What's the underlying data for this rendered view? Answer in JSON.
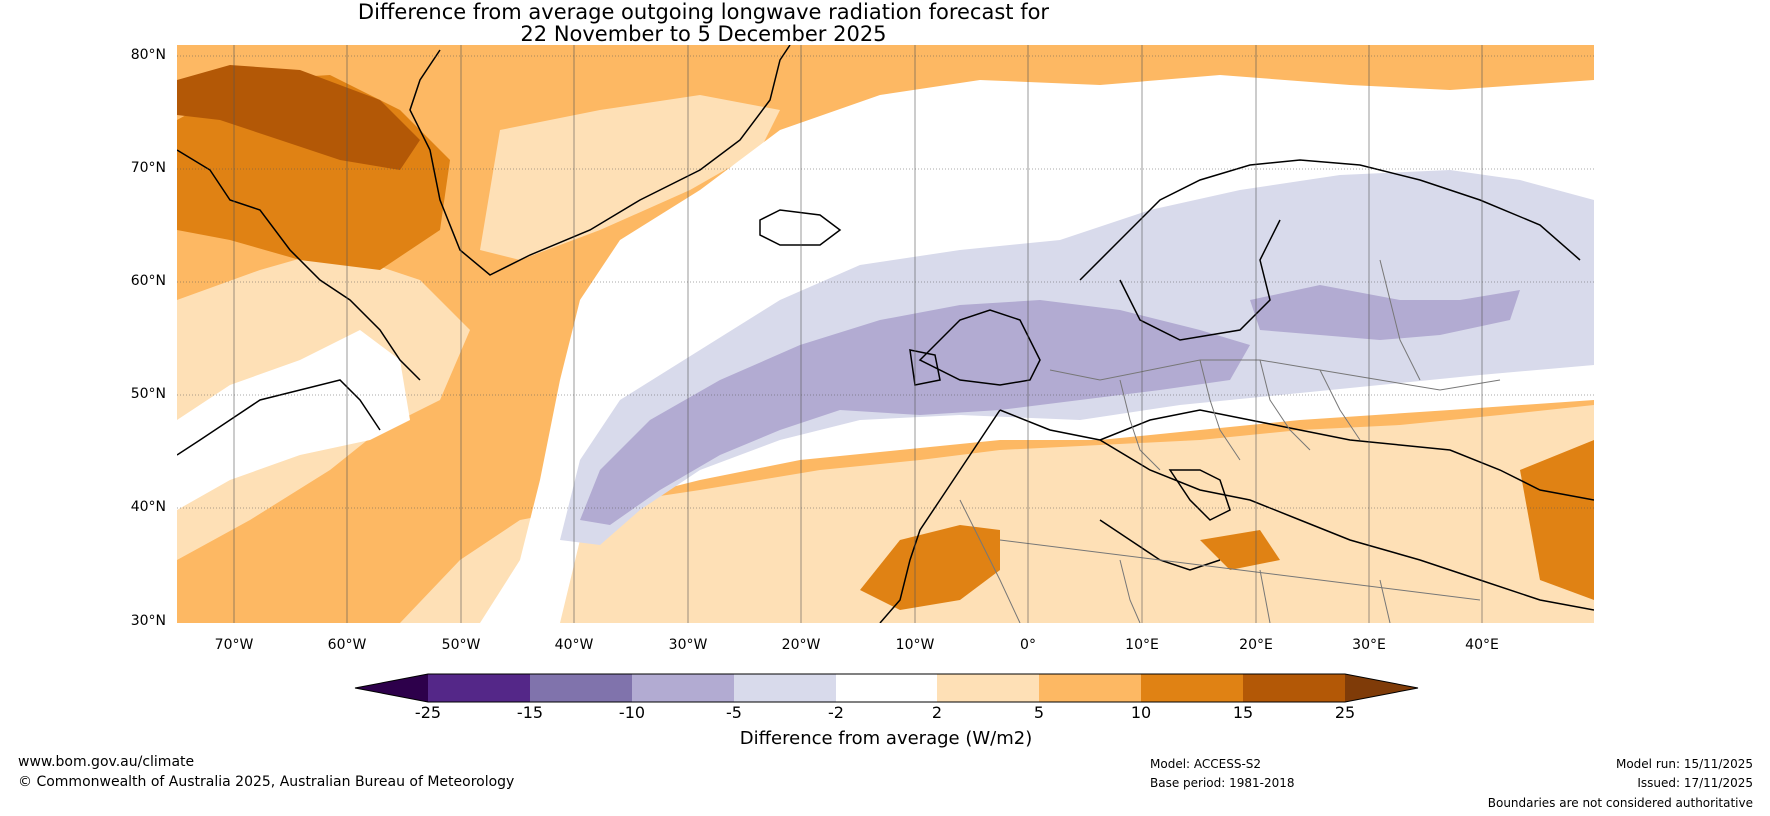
{
  "title_line1": "Difference from average outgoing longwave radiation forecast for",
  "title_line2": "22 November to 5 December 2025",
  "lat_labels": [
    "80°N",
    "70°N",
    "60°N",
    "50°N",
    "40°N",
    "30°N"
  ],
  "lon_labels": [
    "70°W",
    "60°W",
    "50°W",
    "40°W",
    "30°W",
    "20°W",
    "10°W",
    "0°",
    "10°E",
    "20°E",
    "30°E",
    "40°E"
  ],
  "colorbar": {
    "ticks": [
      "-25",
      "-15",
      "-10",
      "-5",
      "-2",
      "2",
      "5",
      "10",
      "15",
      "25"
    ],
    "label": "Difference from average (W/m2)",
    "colors": {
      "extend_low": "#2d004b",
      "c1": "#542788",
      "c2": "#8073ac",
      "c3": "#b2abd2",
      "c4": "#d8daeb",
      "c5": "#ffffff",
      "c6": "#fee0b6",
      "c7": "#fdb863",
      "c8": "#e08214",
      "c9": "#b35806",
      "extend_high": "#7f3b08"
    }
  },
  "footer": {
    "website": "www.bom.gov.au/climate",
    "copyright": "© Commonwealth of Australia 2025, Australian Bureau of Meteorology",
    "model": "Model: ACCESS-S2",
    "base_period": "Base period: 1981-2018",
    "model_run": "Model run: 15/11/2025",
    "issued": "Issued: 17/11/2025",
    "disclaimer": "Boundaries are not considered authoritative"
  }
}
